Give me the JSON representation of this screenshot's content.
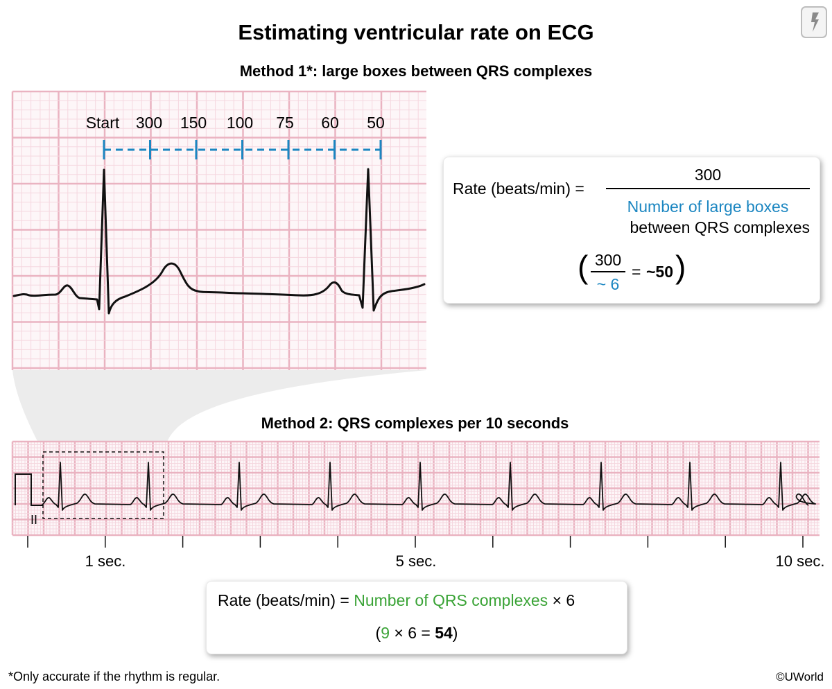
{
  "title": "Estimating ventricular rate on ECG",
  "method1": {
    "title": "Method 1*: large boxes between QRS complexes",
    "labels": [
      "Start",
      "300",
      "150",
      "100",
      "75",
      "60",
      "50"
    ],
    "formula": {
      "lhs": "Rate (beats/min) =",
      "numerator": "300",
      "denominator_line1": "Number of large boxes",
      "denominator_line2": "between QRS complexes",
      "example_numerator": "300",
      "example_denominator": "~ 6",
      "example_equals": "=",
      "example_result": "~50"
    }
  },
  "method2": {
    "title": "Method 2: QRS complexes per 10 seconds",
    "lead_label": "II",
    "time_labels": [
      "1 sec.",
      "5 sec.",
      "10 sec."
    ],
    "formula": {
      "lhs": "Rate (beats/min) =",
      "term": "Number of QRS complexes",
      "multiplier": "× 6",
      "example_open": "(",
      "example_count": "9",
      "example_rest": " × 6 = ",
      "example_result": "54",
      "example_close": ")"
    }
  },
  "footnote": "*Only accurate if the rhythm is regular.",
  "copyright": "©UWorld",
  "colors": {
    "grid": "#f1c6d0",
    "accent_blue": "#1b86c1",
    "accent_green": "#3aa336"
  },
  "icons": [
    "lightning-icon"
  ]
}
